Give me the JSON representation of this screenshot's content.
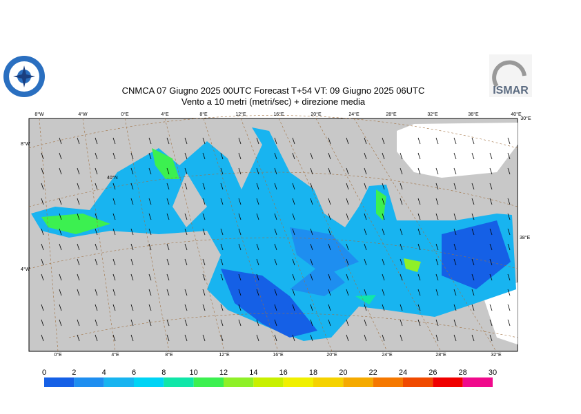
{
  "header": {
    "title": "CNMCA 07   Giugno  2025 00UTC Forecast T+54 VT: 09   Giugno  2025 06UTC",
    "subtitle": "Vento a 10 metri (metri/sec) + direzione media",
    "logo_text": "ISMAR"
  },
  "map": {
    "top_labels": [
      "8°W",
      "4°W",
      "0°E",
      "4°E",
      "8°E",
      "12°E",
      "16°E",
      "20°E",
      "24°E",
      "28°E",
      "32°E",
      "36°E",
      "40°E",
      "30°E"
    ],
    "left_labels": [
      "8°W",
      "40°N",
      "4°W"
    ],
    "right_labels": [
      "38°E"
    ],
    "bottom_labels": [
      "0°E",
      "4°E",
      "8°E",
      "12°E",
      "16°E",
      "20°E",
      "24°E",
      "28°E",
      "32°E"
    ]
  },
  "colorbar": {
    "ticks": [
      0,
      2,
      4,
      6,
      8,
      10,
      12,
      14,
      16,
      18,
      20,
      22,
      24,
      26,
      28,
      30
    ],
    "colors": [
      "#1560e6",
      "#1e8ef0",
      "#18b4f0",
      "#00d4f5",
      "#10e6a8",
      "#3cf050",
      "#8ff028",
      "#c8f000",
      "#f0f000",
      "#f5d200",
      "#f5aa00",
      "#f57800",
      "#f04a00",
      "#f00000",
      "#f00a8c"
    ]
  }
}
